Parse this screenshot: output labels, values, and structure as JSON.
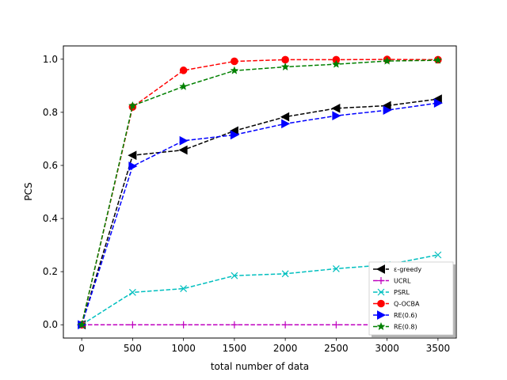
{
  "chart_data": {
    "type": "line",
    "title": "",
    "xlabel": "total number of data",
    "ylabel": "PCS",
    "xlim": [
      -180,
      3680
    ],
    "ylim": [
      -0.05,
      1.05
    ],
    "xticks": [
      0,
      500,
      1000,
      1500,
      2000,
      2500,
      3000,
      3500
    ],
    "xtick_labels": [
      "0",
      "500",
      "1000",
      "1500",
      "2000",
      "2500",
      "3000",
      "3500"
    ],
    "yticks": [
      0.0,
      0.2,
      0.4,
      0.6,
      0.8,
      1.0
    ],
    "ytick_labels": [
      "0.0",
      "0.2",
      "0.4",
      "0.6",
      "0.8",
      "1.0"
    ],
    "x": [
      0,
      500,
      1000,
      1500,
      2000,
      2500,
      3000,
      3500
    ],
    "grid": false,
    "legend_position": "lower-right",
    "series": [
      {
        "name": "ε-greedy",
        "color": "#000000",
        "marker": "triangle-left",
        "values": [
          0.0,
          0.638,
          0.658,
          0.73,
          0.783,
          0.815,
          0.825,
          0.85
        ]
      },
      {
        "name": "UCRL",
        "color": "#bf00bf",
        "marker": "plus",
        "values": [
          0.0,
          0.0,
          0.0,
          0.0,
          0.0,
          0.0,
          0.0,
          0.0
        ]
      },
      {
        "name": "PSRL",
        "color": "#00bfbf",
        "marker": "x",
        "values": [
          0.0,
          0.122,
          0.136,
          0.185,
          0.192,
          0.211,
          0.226,
          0.263
        ]
      },
      {
        "name": "Q-OCBA",
        "color": "#ff0000",
        "marker": "circle",
        "values": [
          0.0,
          0.82,
          0.958,
          0.992,
          0.998,
          0.998,
          0.999,
          0.998
        ]
      },
      {
        "name": "RE(0.6)",
        "color": "#0000ff",
        "marker": "triangle-right",
        "values": [
          0.0,
          0.597,
          0.693,
          0.715,
          0.757,
          0.787,
          0.808,
          0.835
        ]
      },
      {
        "name": "RE(0.8)",
        "color": "#008000",
        "marker": "star",
        "values": [
          0.0,
          0.825,
          0.897,
          0.957,
          0.971,
          0.981,
          0.993,
          0.996
        ]
      }
    ]
  }
}
